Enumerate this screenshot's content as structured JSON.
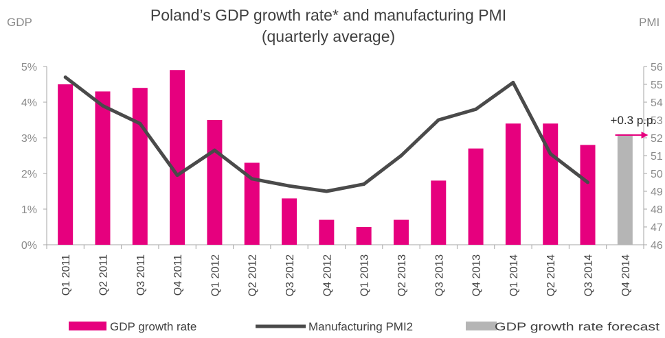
{
  "chart_data": {
    "type": "bar",
    "title_lines": [
      "Poland’s GDP growth rate* and manufacturing PMI",
      "(quarterly average)"
    ],
    "left_axis_label": "GDP",
    "right_axis_label": "PMI",
    "categories": [
      "Q1 2011",
      "Q2 2011",
      "Q3 2011",
      "Q4 2011",
      "Q1 2012",
      "Q2 2012",
      "Q3 2012",
      "Q4 2012",
      "Q1 2013",
      "Q2 2013",
      "Q3 2013",
      "Q4 2013",
      "Q1 2014",
      "Q2 2014",
      "Q3 2014",
      "Q4 2014"
    ],
    "y_left": {
      "min": 0,
      "max": 5,
      "ticks": [
        "0%",
        "1%",
        "2%",
        "3%",
        "4%",
        "5%"
      ]
    },
    "y_right": {
      "min": 46,
      "max": 56,
      "ticks": [
        "46",
        "47",
        "48",
        "49",
        "50",
        "51",
        "52",
        "53",
        "54",
        "55",
        "56"
      ]
    },
    "series": [
      {
        "name": "GDP growth rate",
        "kind": "bar",
        "axis": "left",
        "color": "#e6007e",
        "values": [
          4.5,
          4.3,
          4.4,
          4.9,
          3.5,
          2.3,
          1.3,
          0.7,
          0.5,
          0.7,
          1.8,
          2.7,
          3.4,
          3.4,
          2.8,
          null
        ]
      },
      {
        "name": "Manufacturing PMI2",
        "kind": "line",
        "axis": "right",
        "color": "#4a4a4a",
        "values": [
          55.4,
          53.8,
          52.8,
          49.9,
          51.3,
          49.7,
          49.3,
          49.0,
          49.4,
          51.0,
          53.0,
          53.6,
          55.1,
          51.1,
          49.5,
          null
        ]
      },
      {
        "name": "GDP growth rate forecast",
        "kind": "bar",
        "axis": "left",
        "color": "#b5b5b5",
        "values": [
          null,
          null,
          null,
          null,
          null,
          null,
          null,
          null,
          null,
          null,
          null,
          null,
          null,
          null,
          null,
          3.1
        ]
      }
    ],
    "annotation": {
      "text": "+0.3 p.p.",
      "arrow_color": "#e6007e"
    },
    "grid": false,
    "legend_position": "bottom"
  }
}
